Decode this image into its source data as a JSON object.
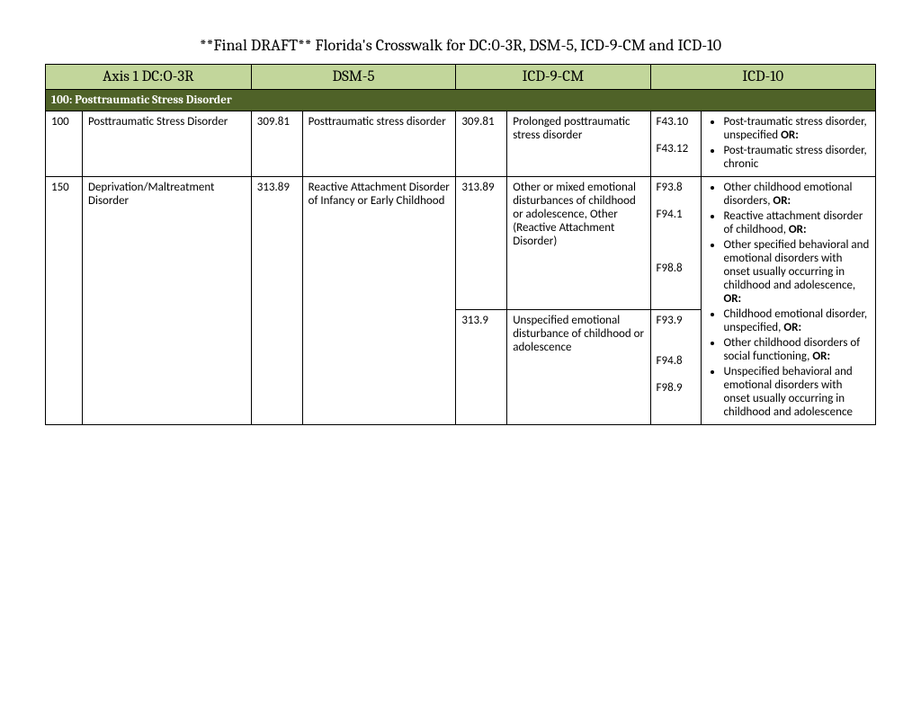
{
  "title": "**Final DRAFT** Florida's Crosswalk for DC:0-3R, DSM-5, ICD-9-CM and ICD-10",
  "headers": {
    "h1": "Axis 1 DC:O-3R",
    "h2": "DSM-5",
    "h3": "ICD-9-CM",
    "h4": "ICD-10"
  },
  "section_label": "100: Posttraumatic Stress Disorder",
  "row1": {
    "code_a": "100",
    "desc_a": "Posttraumatic Stress Disorder",
    "code_b": "309.81",
    "desc_b": "Posttraumatic stress disorder",
    "code_c": "309.81",
    "desc_c": "Prolonged posttraumatic stress disorder",
    "code_d": "F43.10\n\nF43.12",
    "bullets": [
      "Post-traumatic stress disorder, unspecified OR:",
      "Post-traumatic stress disorder, chronic"
    ]
  },
  "row2": {
    "code_a": "150",
    "desc_a": "Deprivation/Maltreatment Disorder",
    "code_b": "313.89",
    "desc_b": "Reactive Attachment Disorder of Infancy or Early Childhood",
    "code_c1": "313.89",
    "desc_c1": "Other or mixed emotional disturbances of childhood or adolescence, Other (Reactive Attachment Disorder)",
    "code_c2": "313.9",
    "desc_c2": "Unspecified emotional disturbance of childhood or adolescence",
    "code_d1": "F93.8\n\nF94.1\n\n\n\nF98.8",
    "code_d2": "F93.9\n\n\nF94.8\n\nF98.9",
    "bullets": [
      "Other childhood emotional disorders, OR:",
      "Reactive attachment disorder of childhood, OR:",
      "Other specified behavioral and emotional disorders with onset usually occurring in childhood and adolescence, OR:",
      "Childhood emotional disorder, unspecified, OR:",
      "Other childhood disorders of social functioning, OR:",
      "Unspecified behavioral and emotional disorders with onset usually occurring in childhood and adolescence"
    ]
  }
}
